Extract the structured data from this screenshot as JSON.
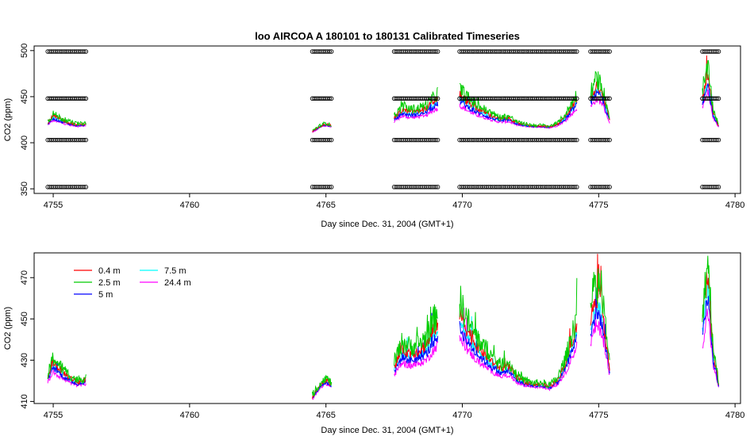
{
  "chart_data": [
    {
      "type": "line",
      "title": "loo   AIRCOA  A    180101  to  180131   Calibrated Timeseries",
      "xlabel": "Day since Dec. 31, 2004 (GMT+1)",
      "ylabel": "CO2 (ppm)",
      "xlim": [
        4754.3,
        4780.2
      ],
      "ylim": [
        345,
        505
      ],
      "xticks": [
        4755,
        4760,
        4765,
        4770,
        4775,
        4780
      ],
      "yticks": [
        350,
        400,
        450,
        500
      ],
      "grid": false,
      "calibration_levels": [
        352,
        403,
        448,
        499
      ],
      "calibration_marker": "o",
      "segments": [
        [
          4754.8,
          4756.2
        ],
        [
          4764.5,
          4765.2
        ],
        [
          4767.5,
          4769.1
        ],
        [
          4769.9,
          4774.2
        ],
        [
          4774.7,
          4775.4
        ],
        [
          4778.8,
          4779.4
        ]
      ],
      "series": [
        {
          "name": "0.4 m",
          "color": "#ff0000"
        },
        {
          "name": "2.5 m",
          "color": "#00cc00"
        },
        {
          "name": "5 m",
          "color": "#0000ff"
        },
        {
          "name": "7.5 m",
          "color": "#00ffff"
        },
        {
          "name": "24.4 m",
          "color": "#ff00ff"
        }
      ],
      "profile": {
        "x": [
          4754.8,
          4755.0,
          4755.3,
          4755.6,
          4755.9,
          4756.2,
          4764.5,
          4764.8,
          4765.0,
          4765.2,
          4767.5,
          4767.8,
          4768.1,
          4768.4,
          4768.7,
          4769.1,
          4769.9,
          4770.2,
          4770.5,
          4770.8,
          4771.1,
          4771.4,
          4771.7,
          4772.0,
          4772.3,
          4772.6,
          4772.9,
          4773.2,
          4773.5,
          4773.8,
          4774.2,
          4774.7,
          4774.9,
          4775.1,
          4775.4,
          4778.8,
          4779.0,
          4779.2,
          4779.4
        ],
        "y": [
          421,
          428,
          424,
          421,
          419,
          420,
          412,
          418,
          420,
          418,
          426,
          434,
          432,
          433,
          436,
          446,
          450,
          442,
          436,
          432,
          428,
          425,
          426,
          421,
          419,
          418,
          418,
          417,
          420,
          428,
          445,
          447,
          458,
          455,
          425,
          445,
          468,
          432,
          418
        ]
      }
    },
    {
      "type": "line",
      "xlabel": "Day since Dec. 31, 2004 (GMT+1)",
      "ylabel": "CO2 (ppm)",
      "xlim": [
        4754.3,
        4780.2
      ],
      "ylim": [
        409,
        482
      ],
      "xticks": [
        4755,
        4760,
        4765,
        4770,
        4775,
        4780
      ],
      "yticks": [
        410,
        430,
        450,
        470
      ],
      "grid": false,
      "legend": "top-left",
      "segments": [
        [
          4754.8,
          4756.2
        ],
        [
          4764.5,
          4765.2
        ],
        [
          4767.5,
          4769.1
        ],
        [
          4769.9,
          4774.2
        ],
        [
          4774.7,
          4775.4
        ],
        [
          4778.8,
          4779.4
        ]
      ],
      "series": [
        {
          "name": "0.4 m",
          "color": "#ff0000"
        },
        {
          "name": "2.5 m",
          "color": "#00cc00"
        },
        {
          "name": "5 m",
          "color": "#0000ff"
        },
        {
          "name": "7.5 m",
          "color": "#00ffff"
        },
        {
          "name": "24.4 m",
          "color": "#ff00ff"
        }
      ],
      "profile": {
        "x": [
          4754.8,
          4755.0,
          4755.3,
          4755.6,
          4755.9,
          4756.2,
          4764.5,
          4764.8,
          4765.0,
          4765.2,
          4767.5,
          4767.8,
          4768.1,
          4768.4,
          4768.7,
          4769.1,
          4769.9,
          4770.2,
          4770.5,
          4770.8,
          4771.1,
          4771.4,
          4771.7,
          4772.0,
          4772.3,
          4772.6,
          4772.9,
          4773.2,
          4773.5,
          4773.8,
          4774.2,
          4774.7,
          4774.9,
          4775.1,
          4775.4,
          4778.8,
          4779.0,
          4779.2,
          4779.4
        ],
        "y": [
          421,
          428,
          424,
          421,
          419,
          420,
          412,
          418,
          420,
          418,
          426,
          434,
          432,
          433,
          436,
          446,
          450,
          442,
          436,
          432,
          428,
          425,
          426,
          421,
          419,
          418,
          418,
          417,
          420,
          428,
          445,
          447,
          458,
          455,
          425,
          445,
          468,
          432,
          418
        ]
      }
    }
  ]
}
